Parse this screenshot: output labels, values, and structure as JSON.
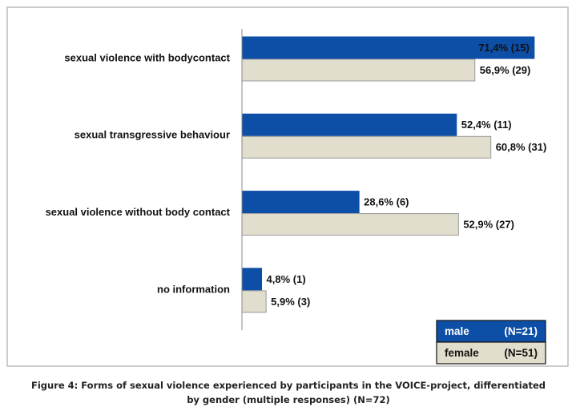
{
  "chart_data": {
    "type": "barh",
    "categories": [
      "sexual violence with bodycontact",
      "sexual transgressive behaviour",
      "sexual violence without body contact",
      "no information"
    ],
    "series": [
      {
        "name": "male",
        "note": "(N=21)",
        "color": "#0d4ea6",
        "values": [
          71.4,
          52.4,
          28.6,
          4.8
        ],
        "value_labels": [
          "71,4% (15)",
          "52,4% (11)",
          "28,6% (6)",
          "4,8% (1)"
        ]
      },
      {
        "name": "female",
        "note": "(N=51)",
        "color": "#e2decd",
        "values": [
          56.9,
          60.8,
          52.9,
          5.9
        ],
        "value_labels": [
          "56,9% (29)",
          "60,8% (31)",
          "52,9% (27)",
          "5,9% (3)"
        ]
      }
    ],
    "xlim": [
      0,
      100
    ],
    "legend": "lower right",
    "caption": "Figure 4: Forms of sexual violence experienced by participants in the VOICE-project, differentiated by gender (multiple responses) (N=72)"
  }
}
